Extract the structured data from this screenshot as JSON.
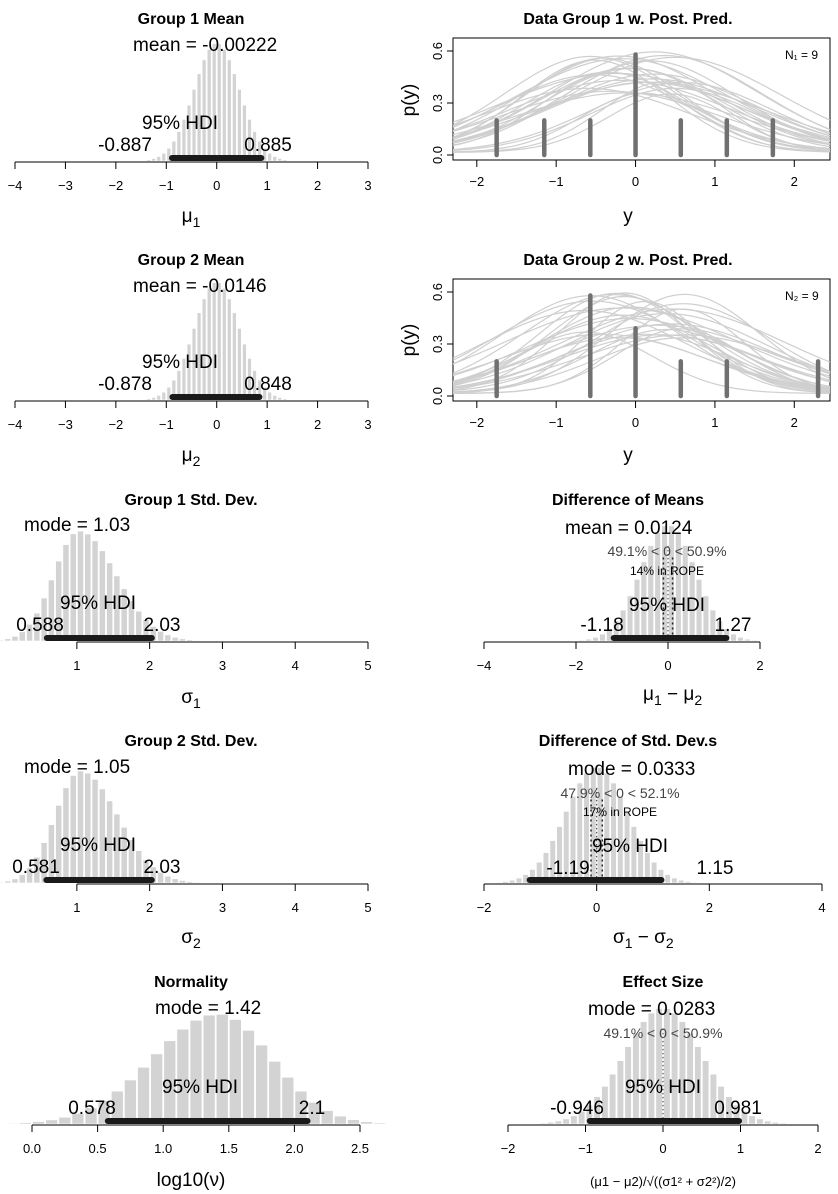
{
  "figure": {
    "panels": [
      {
        "id": "g1mean",
        "title": "Group 1 Mean",
        "xlabel": "μ1",
        "xticks": [
          -4,
          -3,
          -2,
          -1,
          0,
          1,
          2,
          3
        ],
        "stat_label": "mean = -0.00222",
        "hdi_label": "95% HDI",
        "hdi_low_label": "-0.887",
        "hdi_high_label": "0.885"
      },
      {
        "id": "g2mean",
        "title": "Group 2 Mean",
        "xlabel": "μ2",
        "xticks": [
          -4,
          -3,
          -2,
          -1,
          0,
          1,
          2,
          3
        ],
        "stat_label": "mean = -0.0146",
        "hdi_label": "95% HDI",
        "hdi_low_label": "-0.878",
        "hdi_high_label": "0.848"
      },
      {
        "id": "g1sd",
        "title": "Group 1 Std. Dev.",
        "xlabel": "σ1",
        "xticks": [
          1,
          2,
          3,
          4,
          5
        ],
        "stat_label": "mode = 1.03",
        "hdi_label": "95% HDI",
        "hdi_low_label": "0.588",
        "hdi_high_label": "2.03"
      },
      {
        "id": "g2sd",
        "title": "Group 2 Std. Dev.",
        "xlabel": "σ2",
        "xticks": [
          1,
          2,
          3,
          4,
          5
        ],
        "stat_label": "mode = 1.05",
        "hdi_label": "95% HDI",
        "hdi_low_label": "0.581",
        "hdi_high_label": "2.03"
      },
      {
        "id": "norm",
        "title": "Normality",
        "xlabel": "log10(ν)",
        "xticks": [
          "0.0",
          "0.5",
          "1.0",
          "1.5",
          "2.0",
          "2.5"
        ],
        "stat_label": "mode = 1.42",
        "hdi_label": "95% HDI",
        "hdi_low_label": "0.578",
        "hdi_high_label": "2.1"
      },
      {
        "id": "pp1",
        "title": "Data Group 1 w. Post. Pred.",
        "xlabel": "y",
        "ylabel": "p(y)",
        "n_label": "N₁ = 9",
        "xticks": [
          -2,
          -1,
          0,
          1,
          2
        ],
        "yticks": [
          "0.0",
          "0.3",
          "0.6"
        ]
      },
      {
        "id": "pp2",
        "title": "Data Group 2 w. Post. Pred.",
        "xlabel": "y",
        "ylabel": "p(y)",
        "n_label": "N₂ = 9",
        "xticks": [
          -2,
          -1,
          0,
          1,
          2
        ],
        "yticks": [
          "0.0",
          "0.3",
          "0.6"
        ]
      },
      {
        "id": "dmean",
        "title": "Difference of Means",
        "xlabel": "μ1 − μ2",
        "xticks": [
          -4,
          -2,
          0,
          2
        ],
        "stat_label": "mean = 0.0124",
        "pct_label": "49.1% < 0 < 50.9%",
        "rope_label": "14% in ROPE",
        "hdi_label": "95% HDI",
        "hdi_low_label": "-1.18",
        "hdi_high_label": "1.27"
      },
      {
        "id": "dsd",
        "title": "Difference of Std. Dev.s",
        "xlabel": "σ1 − σ2",
        "xticks": [
          -2,
          0,
          2,
          4
        ],
        "stat_label": "mode = 0.0333",
        "pct_label": "47.9% < 0 < 52.1%",
        "rope_label": "17% in ROPE",
        "hdi_label": "95% HDI",
        "hdi_low_label": "-1.19",
        "hdi_high_label": "1.15"
      },
      {
        "id": "eff",
        "title": "Effect Size",
        "xlabel": "(μ1 − μ2)/√((σ1² + σ2²)/2)",
        "xticks": [
          -2,
          -1,
          0,
          1,
          2
        ],
        "stat_label": "mode = 0.0283",
        "pct_label": "49.1% < 0 < 50.9%",
        "hdi_label": "95% HDI",
        "hdi_low_label": "-0.946",
        "hdi_high_label": "0.981"
      }
    ]
  },
  "chart_data": [
    {
      "type": "bar",
      "title": "Group 1 Mean",
      "xlabel": "μ1",
      "xlim": [
        -4,
        3
      ],
      "center": 0.0,
      "spread": 0.45,
      "bin": 0.1,
      "skew": 0,
      "mean": -0.00222,
      "hdi": [
        -0.887,
        0.885
      ]
    },
    {
      "type": "bar",
      "title": "Group 2 Mean",
      "xlabel": "μ2",
      "xlim": [
        -4,
        3
      ],
      "center": 0.0,
      "spread": 0.45,
      "bin": 0.1,
      "skew": 0,
      "mean": -0.0146,
      "hdi": [
        -0.878,
        0.848
      ]
    },
    {
      "type": "bar",
      "title": "Group 1 Std. Dev.",
      "xlabel": "σ1",
      "xlim": [
        0.15,
        5
      ],
      "center": 1.03,
      "spread": 0.35,
      "bin": 0.1,
      "skew": 0.45,
      "mode": 1.03,
      "hdi": [
        0.588,
        2.03
      ]
    },
    {
      "type": "bar",
      "title": "Group 2 Std. Dev.",
      "xlabel": "σ2",
      "xlim": [
        0.15,
        5
      ],
      "center": 1.05,
      "spread": 0.35,
      "bin": 0.1,
      "skew": 0.45,
      "mode": 1.05,
      "hdi": [
        0.581,
        2.03
      ]
    },
    {
      "type": "bar",
      "title": "Normality",
      "xlabel": "log10(ν)",
      "xlim": [
        0,
        2.5
      ],
      "center": 1.42,
      "spread": 0.45,
      "bin": 0.1,
      "skew": -0.1,
      "mode": 1.42,
      "hdi": [
        0.578,
        2.1
      ]
    },
    {
      "type": "line",
      "title": "Data Group 1 w. Post. Pred.",
      "xlabel": "y",
      "ylabel": "p(y)",
      "xlim": [
        -2.3,
        2.45
      ],
      "ylim": [
        0,
        0.6
      ],
      "data_x": [
        -1.75,
        -1.15,
        -0.57,
        0,
        0.57,
        1.15,
        1.73
      ],
      "data_h": [
        0.2,
        0.2,
        0.2,
        0.58,
        0.2,
        0.2,
        0.2
      ],
      "seed": 11
    },
    {
      "type": "line",
      "title": "Data Group 2 w. Post. Pred.",
      "xlabel": "y",
      "ylabel": "p(y)",
      "xlim": [
        -2.3,
        2.45
      ],
      "ylim": [
        0,
        0.6
      ],
      "data_x": [
        -1.75,
        -0.57,
        0,
        0.57,
        1.15,
        2.3
      ],
      "data_h": [
        0.2,
        0.58,
        0.39,
        0.2,
        0.2,
        0.2
      ],
      "seed": 29
    },
    {
      "type": "bar",
      "title": "Difference of Means",
      "xlabel": "μ1 − μ2",
      "xlim": [
        -4,
        2
      ],
      "center": 0.0,
      "spread": 0.6,
      "bin": 0.15,
      "skew": 0,
      "mean": 0.0124,
      "hdi": [
        -1.18,
        1.27
      ],
      "comp": 0,
      "rope": [
        -0.1,
        0.1
      ]
    },
    {
      "type": "bar",
      "title": "Difference of Std. Dev.s",
      "xlabel": "σ1 − σ2",
      "xlim": [
        -2,
        4
      ],
      "center": 0.0,
      "spread": 0.55,
      "bin": 0.12,
      "skew": 0,
      "mode": 0.0333,
      "hdi": [
        -1.19,
        1.15
      ],
      "comp": 0,
      "rope": [
        -0.1,
        0.1
      ]
    },
    {
      "type": "bar",
      "title": "Effect Size",
      "xlabel": "(μ1 − μ2)/√((σ1² + σ2²)/2)",
      "xlim": [
        -2,
        2
      ],
      "center": 0.0,
      "spread": 0.5,
      "bin": 0.1,
      "skew": 0,
      "mode": 0.0283,
      "hdi": [
        -0.946,
        0.981
      ],
      "comp": 0
    }
  ]
}
